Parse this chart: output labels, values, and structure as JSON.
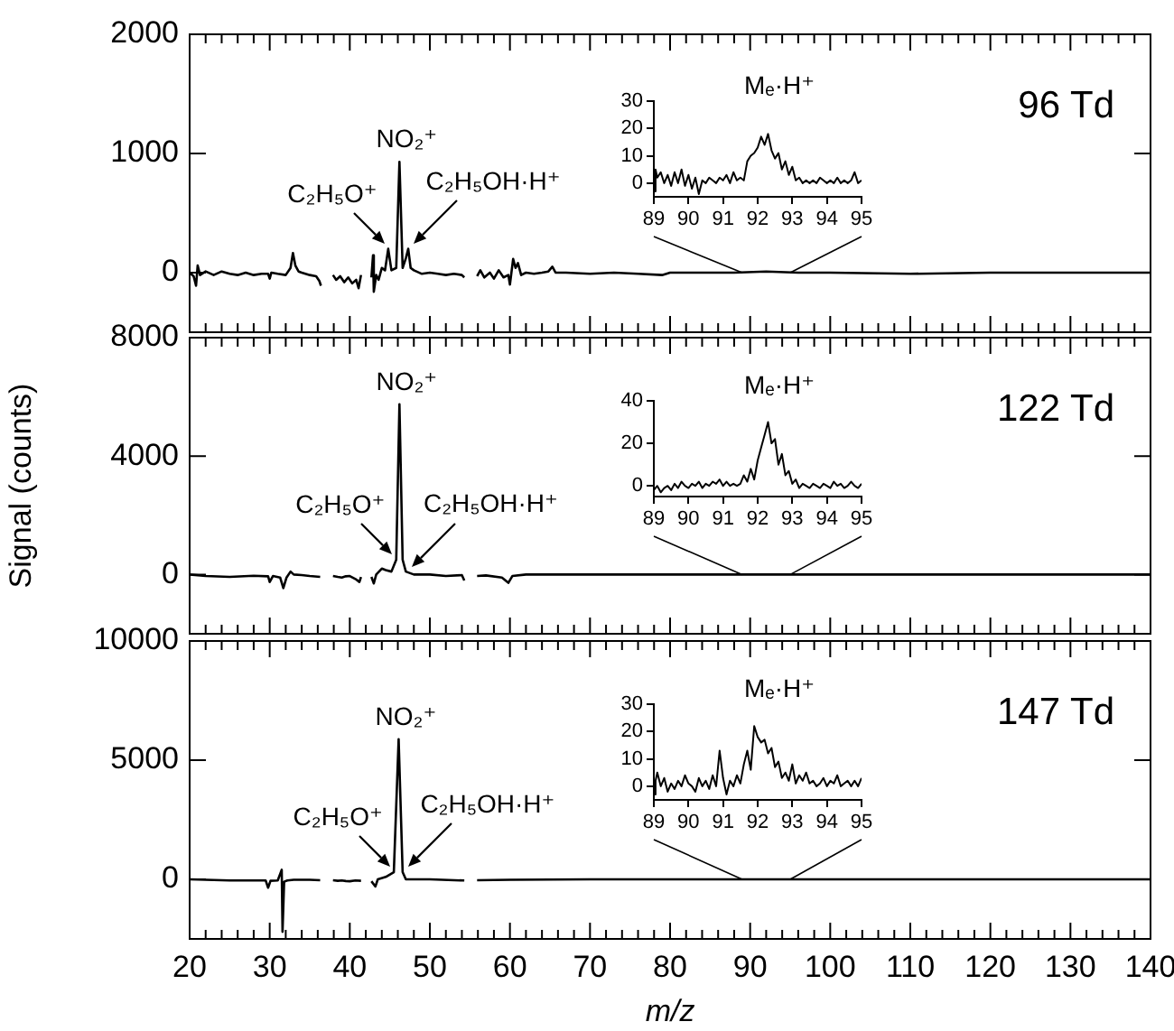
{
  "chart_data": [
    {
      "type": "line",
      "color": "#000000",
      "xlim": [
        20,
        140
      ],
      "ylim": [
        -500,
        2000
      ],
      "yticks": [
        0,
        1000,
        2000
      ],
      "tick_labels": "y",
      "xticks": [
        20,
        {
          "value": 22,
          "label": null
        },
        {
          "value": 24,
          "label": null
        },
        {
          "value": 26,
          "label": null
        },
        {
          "value": 28,
          "label": null
        },
        30,
        {
          "value": 32,
          "label": null
        },
        {
          "value": 34,
          "label": null
        },
        {
          "value": 36,
          "label": null
        },
        {
          "value": 38,
          "label": null
        },
        40,
        {
          "value": 42,
          "label": null
        },
        {
          "value": 44,
          "label": null
        },
        {
          "value": 46,
          "label": null
        },
        {
          "value": 48,
          "label": null
        },
        50,
        {
          "value": 52,
          "label": null
        },
        {
          "value": 54,
          "label": null
        },
        {
          "value": 56,
          "label": null
        },
        {
          "value": 58,
          "label": null
        },
        60,
        {
          "value": 62,
          "label": null
        },
        {
          "value": 64,
          "label": null
        },
        {
          "value": 66,
          "label": null
        },
        {
          "value": 68,
          "label": null
        },
        70,
        {
          "value": 72,
          "label": null
        },
        {
          "value": 74,
          "label": null
        },
        {
          "value": 76,
          "label": null
        },
        {
          "value": 78,
          "label": null
        },
        80,
        {
          "value": 82,
          "label": null
        },
        {
          "value": 84,
          "label": null
        },
        {
          "value": 86,
          "label": null
        },
        {
          "value": 88,
          "label": null
        },
        90,
        {
          "value": 92,
          "label": null
        },
        {
          "value": 94,
          "label": null
        },
        {
          "value": 96,
          "label": null
        },
        {
          "value": 98,
          "label": null
        },
        100,
        {
          "value": 102,
          "label": null
        },
        {
          "value": 104,
          "label": null
        },
        {
          "value": 106,
          "label": null
        },
        {
          "value": 108,
          "label": null
        },
        110,
        {
          "value": 112,
          "label": null
        },
        {
          "value": 114,
          "label": null
        },
        {
          "value": 116,
          "label": null
        },
        {
          "value": 118,
          "label": null
        },
        120,
        {
          "value": 122,
          "label": null
        },
        {
          "value": 124,
          "label": null
        },
        {
          "value": 126,
          "label": null
        },
        {
          "value": 128,
          "label": null
        },
        130,
        {
          "value": 132,
          "label": null
        },
        {
          "value": 134,
          "label": null
        },
        {
          "value": 136,
          "label": null
        },
        {
          "value": 138,
          "label": null
        },
        140
      ],
      "x": [
        20,
        20.5,
        20.8,
        21,
        21.3,
        22,
        23,
        24,
        25,
        26,
        27,
        28,
        29,
        29.8,
        30,
        30.2,
        31,
        32,
        32.6,
        32.9,
        33.2,
        33.6,
        34,
        35,
        35.8,
        36.2,
        36.4,
        36.5,
        37.9,
        38.3,
        38.8,
        39.3,
        39.8,
        40.3,
        40.8,
        41.1,
        41.4,
        41.6,
        42.7,
        42.9,
        43,
        43.3,
        43.6,
        44,
        44.4,
        44.8,
        45.2,
        45.8,
        46.2,
        46.6,
        47,
        47.3,
        47.6,
        48,
        49,
        50,
        51,
        52,
        53,
        54,
        54.3,
        54.4,
        55.9,
        56.3,
        56.8,
        57.5,
        58,
        58.6,
        59.2,
        59.8,
        60,
        60.4,
        60.7,
        61,
        61.4,
        62,
        63,
        64,
        64.8,
        65.3,
        65.7,
        67,
        70,
        73,
        76,
        79,
        80,
        84,
        88,
        92,
        96,
        100,
        110,
        120,
        130,
        140
      ],
      "values": [
        0,
        -30,
        -110,
        60,
        -20,
        10,
        -20,
        10,
        -10,
        -20,
        0,
        -20,
        -10,
        -10,
        -50,
        0,
        -10,
        -20,
        40,
        165,
        60,
        10,
        0,
        -20,
        -30,
        -70,
        -110,
        null,
        -20,
        -60,
        -30,
        -80,
        -40,
        -90,
        -60,
        -130,
        -20,
        null,
        -40,
        145,
        -160,
        -20,
        -60,
        40,
        20,
        200,
        20,
        40,
        930,
        40,
        120,
        200,
        40,
        20,
        -10,
        0,
        -10,
        -20,
        -10,
        -20,
        -40,
        null,
        -30,
        20,
        -40,
        0,
        -50,
        20,
        -40,
        -20,
        -100,
        115,
        40,
        80,
        -20,
        0,
        -10,
        0,
        10,
        50,
        0,
        0,
        -10,
        0,
        -10,
        -20,
        0,
        0,
        0,
        10,
        0,
        0,
        -10,
        0,
        0,
        0
      ],
      "annotations": [
        "96 Td",
        {
          "text": "C₂H₅O⁺",
          "x": 44.8,
          "y": 200
        },
        {
          "text": "NO₂⁺",
          "x": 46.2,
          "y": 930
        },
        {
          "text": "C₂H₅OH·H⁺",
          "x": 47.3,
          "y": 200
        }
      ]
    },
    {
      "type": "line",
      "color": "#000000",
      "xlim": [
        20,
        140
      ],
      "ylim": [
        -2000,
        8000
      ],
      "yticks": [
        0,
        4000,
        8000
      ],
      "tick_labels": "y",
      "ylabel": "Signal (counts)",
      "xticks": [
        20,
        {
          "value": 22,
          "label": null
        },
        {
          "value": 24,
          "label": null
        },
        {
          "value": 26,
          "label": null
        },
        {
          "value": 28,
          "label": null
        },
        30,
        {
          "value": 32,
          "label": null
        },
        {
          "value": 34,
          "label": null
        },
        {
          "value": 36,
          "label": null
        },
        {
          "value": 38,
          "label": null
        },
        40,
        {
          "value": 42,
          "label": null
        },
        {
          "value": 44,
          "label": null
        },
        {
          "value": 46,
          "label": null
        },
        {
          "value": 48,
          "label": null
        },
        50,
        {
          "value": 52,
          "label": null
        },
        {
          "value": 54,
          "label": null
        },
        {
          "value": 56,
          "label": null
        },
        {
          "value": 58,
          "label": null
        },
        60,
        {
          "value": 62,
          "label": null
        },
        {
          "value": 64,
          "label": null
        },
        {
          "value": 66,
          "label": null
        },
        {
          "value": 68,
          "label": null
        },
        70,
        {
          "value": 72,
          "label": null
        },
        {
          "value": 74,
          "label": null
        },
        {
          "value": 76,
          "label": null
        },
        {
          "value": 78,
          "label": null
        },
        80,
        {
          "value": 82,
          "label": null
        },
        {
          "value": 84,
          "label": null
        },
        {
          "value": 86,
          "label": null
        },
        {
          "value": 88,
          "label": null
        },
        90,
        {
          "value": 92,
          "label": null
        },
        {
          "value": 94,
          "label": null
        },
        {
          "value": 96,
          "label": null
        },
        {
          "value": 98,
          "label": null
        },
        100,
        {
          "value": 102,
          "label": null
        },
        {
          "value": 104,
          "label": null
        },
        {
          "value": 106,
          "label": null
        },
        {
          "value": 108,
          "label": null
        },
        110,
        {
          "value": 112,
          "label": null
        },
        {
          "value": 114,
          "label": null
        },
        {
          "value": 116,
          "label": null
        },
        {
          "value": 118,
          "label": null
        },
        120,
        {
          "value": 122,
          "label": null
        },
        {
          "value": 124,
          "label": null
        },
        {
          "value": 126,
          "label": null
        },
        {
          "value": 128,
          "label": null
        },
        130,
        {
          "value": 132,
          "label": null
        },
        {
          "value": 134,
          "label": null
        },
        {
          "value": 136,
          "label": null
        },
        {
          "value": 138,
          "label": null
        },
        140
      ],
      "x": [
        20,
        22,
        25,
        28,
        29.8,
        30,
        30.4,
        31.3,
        31.7,
        32.1,
        32.6,
        33,
        34,
        35,
        36.3,
        36.5,
        37.9,
        38.5,
        39,
        39.5,
        40,
        40.7,
        41.2,
        41.4,
        41.6,
        42.7,
        43,
        43.3,
        44,
        44.5,
        45.2,
        45.8,
        46.2,
        46.6,
        47,
        48,
        50,
        52,
        54,
        54.3,
        54.4,
        55.9,
        57,
        59,
        59.8,
        60.3,
        62,
        66,
        70,
        80,
        90,
        100,
        110,
        120,
        130,
        140
      ],
      "values": [
        0,
        -50,
        -80,
        -40,
        -60,
        -250,
        -50,
        -100,
        -460,
        -100,
        100,
        0,
        -20,
        -50,
        -80,
        null,
        -50,
        -80,
        -100,
        -60,
        -50,
        -150,
        -250,
        -80,
        null,
        -80,
        -300,
        0,
        200,
        150,
        100,
        500,
        5750,
        500,
        100,
        0,
        0,
        -50,
        -20,
        -200,
        null,
        -50,
        -30,
        -100,
        -280,
        -50,
        0,
        0,
        0,
        0,
        0,
        0,
        0,
        0,
        0,
        0
      ],
      "annotations": [
        "122 Td",
        {
          "text": "C₂H₅O⁺",
          "x": 45.8,
          "y": 500
        },
        {
          "text": "NO₂⁺",
          "x": 46.2,
          "y": 5750
        },
        {
          "text": "C₂H₅OH·H⁺",
          "x": 47,
          "y": 100
        }
      ]
    },
    {
      "type": "line",
      "color": "#000000",
      "xlim": [
        20,
        140
      ],
      "ylim": [
        -2500,
        10000
      ],
      "yticks": [
        0,
        5000,
        10000
      ],
      "xlabel": "m/z",
      "xticks": [
        20,
        {
          "value": 22,
          "label": null
        },
        {
          "value": 24,
          "label": null
        },
        {
          "value": 26,
          "label": null
        },
        {
          "value": 28,
          "label": null
        },
        30,
        {
          "value": 32,
          "label": null
        },
        {
          "value": 34,
          "label": null
        },
        {
          "value": 36,
          "label": null
        },
        {
          "value": 38,
          "label": null
        },
        40,
        {
          "value": 42,
          "label": null
        },
        {
          "value": 44,
          "label": null
        },
        {
          "value": 46,
          "label": null
        },
        {
          "value": 48,
          "label": null
        },
        50,
        {
          "value": 52,
          "label": null
        },
        {
          "value": 54,
          "label": null
        },
        {
          "value": 56,
          "label": null
        },
        {
          "value": 58,
          "label": null
        },
        60,
        {
          "value": 62,
          "label": null
        },
        {
          "value": 64,
          "label": null
        },
        {
          "value": 66,
          "label": null
        },
        {
          "value": 68,
          "label": null
        },
        70,
        {
          "value": 72,
          "label": null
        },
        {
          "value": 74,
          "label": null
        },
        {
          "value": 76,
          "label": null
        },
        {
          "value": 78,
          "label": null
        },
        80,
        {
          "value": 82,
          "label": null
        },
        {
          "value": 84,
          "label": null
        },
        {
          "value": 86,
          "label": null
        },
        {
          "value": 88,
          "label": null
        },
        90,
        {
          "value": 92,
          "label": null
        },
        {
          "value": 94,
          "label": null
        },
        {
          "value": 96,
          "label": null
        },
        {
          "value": 98,
          "label": null
        },
        100,
        {
          "value": 102,
          "label": null
        },
        {
          "value": 104,
          "label": null
        },
        {
          "value": 106,
          "label": null
        },
        {
          "value": 108,
          "label": null
        },
        110,
        {
          "value": 112,
          "label": null
        },
        {
          "value": 114,
          "label": null
        },
        {
          "value": 116,
          "label": null
        },
        {
          "value": 118,
          "label": null
        },
        120,
        {
          "value": 122,
          "label": null
        },
        {
          "value": 124,
          "label": null
        },
        {
          "value": 126,
          "label": null
        },
        {
          "value": 128,
          "label": null
        },
        130,
        {
          "value": 132,
          "label": null
        },
        {
          "value": 134,
          "label": null
        },
        {
          "value": 136,
          "label": null
        },
        {
          "value": 138,
          "label": null
        },
        140
      ],
      "x": [
        20,
        25,
        29.5,
        29.8,
        30.1,
        31,
        31.5,
        31.6,
        31.8,
        32.2,
        33,
        35,
        36.3,
        36.5,
        37.9,
        38.5,
        39,
        39.5,
        40,
        40.7,
        41.4,
        41.6,
        42.7,
        43.2,
        43.5,
        44.5,
        45.5,
        46.1,
        46.6,
        47,
        50,
        54.3,
        54.4,
        55.9,
        60,
        70,
        90,
        110,
        140
      ],
      "values": [
        0,
        -50,
        -50,
        -350,
        -60,
        -50,
        400,
        -2200,
        -100,
        -50,
        -20,
        -20,
        -40,
        null,
        -40,
        -60,
        -50,
        -70,
        -80,
        -50,
        -60,
        null,
        -80,
        -300,
        0,
        100,
        300,
        5880,
        300,
        0,
        0,
        -50,
        null,
        -40,
        -20,
        0,
        0,
        0,
        0
      ],
      "annotations": [
        "147 Td",
        {
          "text": "C₂H₅O⁺",
          "x": 45.5,
          "y": 300
        },
        {
          "text": "NO₂⁺",
          "x": 46.1,
          "y": 5880
        },
        {
          "text": "C₂H₅OH·H⁺",
          "x": 46.6,
          "y": 300
        }
      ]
    },
    {
      "type": "line",
      "color": "#000000",
      "title": "Mₑ·H⁺",
      "xlim": [
        89,
        95
      ],
      "xticks": [
        89,
        90,
        91,
        92,
        93,
        94,
        95
      ],
      "ylim": [
        -5,
        30
      ],
      "yticks": [
        0,
        10,
        20,
        30
      ],
      "x": [
        89,
        89.05,
        89.1,
        89.2,
        89.3,
        89.4,
        89.5,
        89.6,
        89.7,
        89.8,
        89.9,
        90,
        90.1,
        90.2,
        90.3,
        90.4,
        90.5,
        90.6,
        90.7,
        90.8,
        90.9,
        91,
        91.1,
        91.2,
        91.3,
        91.4,
        91.5,
        91.6,
        91.7,
        91.8,
        91.9,
        92,
        92.1,
        92.2,
        92.3,
        92.4,
        92.5,
        92.6,
        92.7,
        92.8,
        92.9,
        93,
        93.1,
        93.2,
        93.3,
        93.4,
        93.5,
        93.6,
        93.7,
        93.8,
        93.9,
        94,
        94.1,
        94.2,
        94.3,
        94.4,
        94.5,
        94.6,
        94.7,
        94.8,
        94.9,
        95
      ],
      "values": [
        -3,
        5,
        2,
        4,
        0,
        3,
        -1,
        4,
        0,
        5,
        -1,
        3,
        -2,
        2,
        -4,
        1,
        0,
        2,
        1,
        0,
        2,
        1,
        3,
        0,
        4,
        1,
        2,
        1,
        8,
        10,
        11,
        13,
        17,
        14,
        18,
        12,
        9,
        11,
        5,
        8,
        3,
        6,
        1,
        2,
        0,
        1,
        0,
        1,
        0,
        2,
        1,
        0,
        1,
        0,
        2,
        0,
        1,
        0,
        1,
        4,
        0,
        1
      ]
    },
    {
      "type": "line",
      "color": "#000000",
      "title": "Mₑ·H⁺",
      "xlim": [
        89,
        95
      ],
      "xticks": [
        89,
        90,
        91,
        92,
        93,
        94,
        95
      ],
      "ylim": [
        -5,
        40
      ],
      "yticks": [
        0,
        20,
        40
      ],
      "x": [
        89,
        89.1,
        89.2,
        89.3,
        89.4,
        89.5,
        89.6,
        89.7,
        89.8,
        89.9,
        90,
        90.1,
        90.2,
        90.3,
        90.4,
        90.5,
        90.6,
        90.7,
        90.8,
        90.9,
        91,
        91.1,
        91.2,
        91.3,
        91.4,
        91.5,
        91.6,
        91.7,
        91.8,
        91.9,
        92,
        92.1,
        92.2,
        92.3,
        92.4,
        92.5,
        92.6,
        92.7,
        92.8,
        92.9,
        93,
        93.1,
        93.2,
        93.3,
        93.4,
        93.5,
        93.6,
        93.7,
        93.8,
        93.9,
        94,
        94.1,
        94.2,
        94.3,
        94.4,
        94.5,
        94.6,
        94.7,
        94.8,
        94.9,
        95
      ],
      "values": [
        -2,
        0,
        -3,
        -1,
        0,
        -2,
        1,
        -1,
        2,
        0,
        -1,
        1,
        0,
        2,
        -1,
        1,
        0,
        2,
        1,
        3,
        0,
        2,
        0,
        1,
        0,
        1,
        5,
        2,
        8,
        3,
        12,
        18,
        24,
        30,
        20,
        22,
        10,
        15,
        5,
        7,
        1,
        3,
        -1,
        1,
        0,
        -1,
        1,
        0,
        -1,
        1,
        0,
        -1,
        2,
        0,
        1,
        -1,
        0,
        2,
        0,
        -1,
        1
      ]
    },
    {
      "type": "line",
      "color": "#000000",
      "title": "Mₑ·H⁺",
      "xlim": [
        89,
        95
      ],
      "xticks": [
        89,
        90,
        91,
        92,
        93,
        94,
        95
      ],
      "ylim": [
        -5,
        30
      ],
      "yticks": [
        0,
        10,
        20,
        30
      ],
      "x": [
        89,
        89.05,
        89.1,
        89.2,
        89.3,
        89.4,
        89.5,
        89.6,
        89.7,
        89.8,
        89.9,
        90,
        90.1,
        90.2,
        90.3,
        90.4,
        90.5,
        90.6,
        90.7,
        90.8,
        90.9,
        91,
        91.1,
        91.2,
        91.3,
        91.4,
        91.5,
        91.6,
        91.7,
        91.8,
        91.9,
        92,
        92.1,
        92.2,
        92.3,
        92.4,
        92.5,
        92.6,
        92.7,
        92.8,
        92.9,
        93,
        93.1,
        93.2,
        93.3,
        93.4,
        93.5,
        93.6,
        93.7,
        93.8,
        93.9,
        94,
        94.1,
        94.2,
        94.3,
        94.4,
        94.5,
        94.6,
        94.7,
        94.8,
        94.9,
        95
      ],
      "values": [
        -3,
        2,
        5,
        0,
        3,
        -2,
        1,
        -1,
        2,
        0,
        4,
        1,
        0,
        -2,
        3,
        0,
        2,
        -1,
        4,
        0,
        13,
        3,
        -3,
        2,
        0,
        4,
        1,
        8,
        13,
        6,
        22,
        18,
        16,
        17,
        12,
        14,
        7,
        9,
        3,
        5,
        2,
        8,
        1,
        4,
        2,
        5,
        1,
        2,
        0,
        1,
        3,
        0,
        2,
        1,
        4,
        0,
        1,
        2,
        0,
        2,
        0,
        3
      ]
    }
  ]
}
